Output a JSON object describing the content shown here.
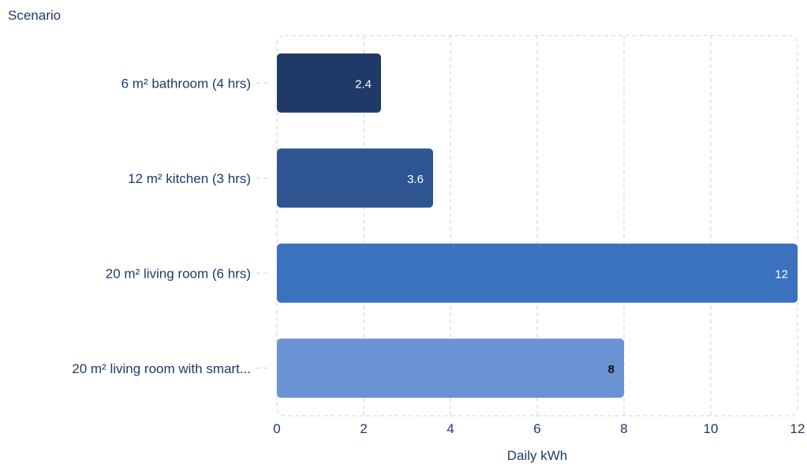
{
  "chart_data": {
    "type": "bar",
    "orientation": "horizontal",
    "ytitle": "Scenario",
    "xlabel": "Daily kWh",
    "categories": [
      "6 m² bathroom (4 hrs)",
      "12 m² kitchen (3 hrs)",
      "20 m² living room (6 hrs)",
      "20 m² living room with smart..."
    ],
    "values": [
      2.4,
      3.6,
      12,
      8
    ],
    "data_labels": [
      "2.4",
      "3.6",
      "12",
      "8"
    ],
    "bar_colors": [
      "#1f3a66",
      "#2e5591",
      "#3b72c0",
      "#6a93d3"
    ],
    "label_colors": [
      "#ffffff",
      "#ffffff",
      "#ffffff",
      "#111111"
    ],
    "xlim": [
      0,
      12
    ],
    "xticks": [
      0,
      2,
      4,
      6,
      8,
      10,
      12
    ],
    "grid": true,
    "text_color": "#1f3a66",
    "grid_color": "#d9d9d9"
  }
}
